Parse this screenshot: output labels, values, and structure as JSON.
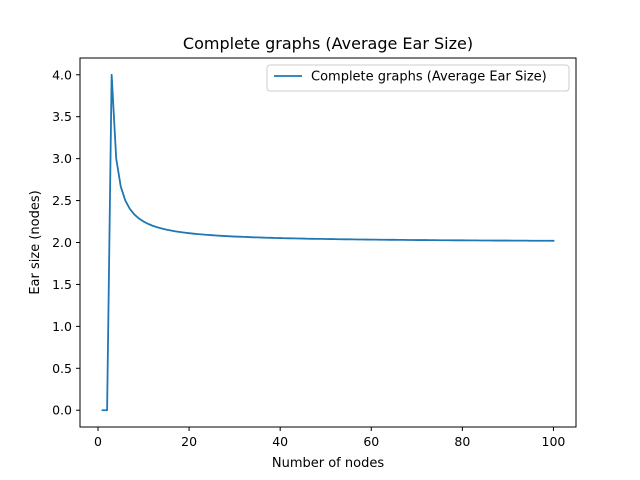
{
  "chart_data": {
    "type": "line",
    "title": "Complete graphs (Average Ear Size)",
    "xlabel": "Number of nodes",
    "ylabel": "Ear size (nodes)",
    "xlim": [
      -3.95,
      104.95
    ],
    "ylim": [
      -0.2,
      4.2
    ],
    "xticks": [
      0,
      20,
      40,
      60,
      80,
      100
    ],
    "yticks": [
      0.0,
      0.5,
      1.0,
      1.5,
      2.0,
      2.5,
      3.0,
      3.5,
      4.0
    ],
    "xtick_labels": [
      "0",
      "20",
      "40",
      "60",
      "80",
      "100"
    ],
    "ytick_labels": [
      "0.0",
      "0.5",
      "1.0",
      "1.5",
      "2.0",
      "2.5",
      "3.0",
      "3.5",
      "4.0"
    ],
    "grid": false,
    "legend": "top-right",
    "color": "#1f77b4",
    "series": [
      {
        "name": "Complete graphs (Average Ear Size)",
        "x_start": 1,
        "x_end": 100,
        "values": [
          0,
          0,
          4,
          3,
          2.667,
          2.5,
          2.4,
          2.333,
          2.286,
          2.25,
          2.222,
          2.2,
          2.182,
          2.167,
          2.154,
          2.143,
          2.133,
          2.125,
          2.118,
          2.111,
          2.105,
          2.1,
          2.095,
          2.091,
          2.087,
          2.083,
          2.08,
          2.077,
          2.074,
          2.071,
          2.069,
          2.067,
          2.065,
          2.062,
          2.061,
          2.059,
          2.057,
          2.056,
          2.054,
          2.053,
          2.051,
          2.05,
          2.049,
          2.048,
          2.047,
          2.045,
          2.044,
          2.043,
          2.043,
          2.042,
          2.041,
          2.04,
          2.039,
          2.038,
          2.038,
          2.037,
          2.036,
          2.036,
          2.035,
          2.034,
          2.034,
          2.033,
          2.033,
          2.032,
          2.032,
          2.031,
          2.031,
          2.03,
          2.03,
          2.029,
          2.029,
          2.029,
          2.028,
          2.028,
          2.027,
          2.027,
          2.027,
          2.026,
          2.026,
          2.026,
          2.025,
          2.025,
          2.025,
          2.024,
          2.024,
          2.024,
          2.023,
          2.023,
          2.023,
          2.023,
          2.022,
          2.022,
          2.022,
          2.022,
          2.021,
          2.021,
          2.021,
          2.021,
          2.021,
          2.02
        ]
      }
    ]
  }
}
